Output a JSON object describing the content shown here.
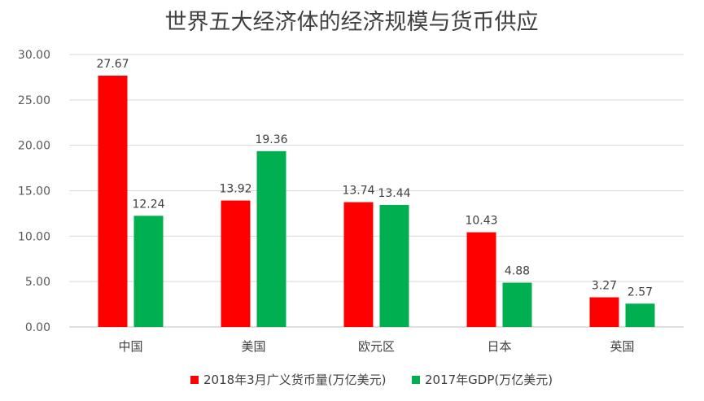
{
  "chart_data": {
    "type": "bar",
    "title": "世界五大经济体的经济规模与货币供应",
    "categories": [
      "中国",
      "美国",
      "欧元区",
      "日本",
      "英国"
    ],
    "series": [
      {
        "name": "2018年3月广义货币量(万亿美元)",
        "color": "#ff0000",
        "values": [
          27.67,
          13.92,
          13.74,
          10.43,
          3.27
        ]
      },
      {
        "name": "2017年GDP(万亿美元)",
        "color": "#00b050",
        "values": [
          12.24,
          19.36,
          13.44,
          4.88,
          2.57
        ]
      }
    ],
    "yticks": [
      "0.00",
      "5.00",
      "10.00",
      "15.00",
      "20.00",
      "25.00",
      "30.00"
    ],
    "ylim": [
      0,
      30
    ],
    "grid": true,
    "legend": "bottom"
  }
}
